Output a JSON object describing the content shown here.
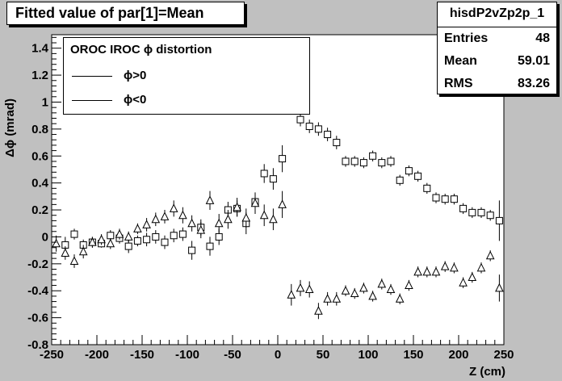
{
  "canvas": {
    "background": "#c0c0c0",
    "frame_color": "#ffffff"
  },
  "title": "Fitted value of par[1]=Mean",
  "stats": {
    "name": "hisdP2vZp2p_1",
    "rows": [
      {
        "label": "Entries",
        "value": "48"
      },
      {
        "label": "Mean",
        "value": "59.01"
      },
      {
        "label": "RMS",
        "value": "83.26"
      }
    ]
  },
  "legend": {
    "title": "OROC  IROC ϕ distortion",
    "entries": [
      {
        "label": "ϕ>0",
        "marker": "open-square"
      },
      {
        "label": "ϕ<0",
        "marker": "open-triangle"
      }
    ]
  },
  "chart_data": {
    "type": "scatter",
    "xlabel": "Z (cm)",
    "ylabel": "Δϕ (mrad)",
    "xlim": [
      -250,
      250
    ],
    "ylim": [
      -0.8,
      1.5
    ],
    "xticks": [
      -250,
      -200,
      -150,
      -100,
      -50,
      0,
      50,
      100,
      150,
      200,
      250
    ],
    "xtick_labels": [
      "-250",
      "-200",
      "-150",
      "-100",
      "-50",
      "0",
      "50",
      "100",
      "150",
      "200",
      "250"
    ],
    "yticks": [
      -0.8,
      -0.6,
      -0.4,
      -0.2,
      0,
      0.2,
      0.4,
      0.6,
      0.8,
      1,
      1.2,
      1.4
    ],
    "ytick_labels": [
      "-0.8",
      "-0.6",
      "-0.4",
      "-0.2",
      "0",
      "0.2",
      "0.4",
      "0.6",
      "0.8",
      "1",
      "1.2",
      "1.4"
    ],
    "grid": false,
    "legend_position": "top-left",
    "series": [
      {
        "name": "ϕ>0",
        "marker": "open-square",
        "points": [
          {
            "x": -235,
            "y": -0.06,
            "err": 0.06
          },
          {
            "x": -225,
            "y": 0.02,
            "err": 0.04
          },
          {
            "x": -215,
            "y": -0.06,
            "err": 0.04
          },
          {
            "x": -205,
            "y": -0.04,
            "err": 0.04
          },
          {
            "x": -195,
            "y": -0.05,
            "err": 0.03
          },
          {
            "x": -185,
            "y": 0.01,
            "err": 0.04
          },
          {
            "x": -175,
            "y": -0.01,
            "err": 0.04
          },
          {
            "x": -165,
            "y": -0.07,
            "err": 0.05
          },
          {
            "x": -155,
            "y": -0.03,
            "err": 0.04
          },
          {
            "x": -145,
            "y": -0.02,
            "err": 0.05
          },
          {
            "x": -135,
            "y": 0.0,
            "err": 0.05
          },
          {
            "x": -125,
            "y": -0.04,
            "err": 0.05
          },
          {
            "x": -115,
            "y": 0.01,
            "err": 0.05
          },
          {
            "x": -105,
            "y": 0.02,
            "err": 0.05
          },
          {
            "x": -95,
            "y": -0.1,
            "err": 0.07
          },
          {
            "x": -85,
            "y": 0.07,
            "err": 0.06
          },
          {
            "x": -75,
            "y": -0.07,
            "err": 0.07
          },
          {
            "x": -65,
            "y": 0.0,
            "err": 0.06
          },
          {
            "x": -55,
            "y": 0.2,
            "err": 0.06
          },
          {
            "x": -45,
            "y": 0.21,
            "err": 0.06
          },
          {
            "x": -35,
            "y": 0.1,
            "err": 0.08
          },
          {
            "x": -25,
            "y": 0.26,
            "err": 0.06
          },
          {
            "x": -15,
            "y": 0.47,
            "err": 0.07
          },
          {
            "x": -5,
            "y": 0.43,
            "err": 0.08
          },
          {
            "x": 5,
            "y": 0.58,
            "err": 0.1
          },
          {
            "x": 25,
            "y": 0.87,
            "err": 0.05
          },
          {
            "x": 35,
            "y": 0.82,
            "err": 0.05
          },
          {
            "x": 45,
            "y": 0.8,
            "err": 0.05
          },
          {
            "x": 55,
            "y": 0.76,
            "err": 0.05
          },
          {
            "x": 65,
            "y": 0.7,
            "err": 0.05
          },
          {
            "x": 75,
            "y": 0.56,
            "err": 0.04
          },
          {
            "x": 85,
            "y": 0.56,
            "err": 0.04
          },
          {
            "x": 95,
            "y": 0.55,
            "err": 0.04
          },
          {
            "x": 105,
            "y": 0.6,
            "err": 0.04
          },
          {
            "x": 115,
            "y": 0.55,
            "err": 0.04
          },
          {
            "x": 125,
            "y": 0.56,
            "err": 0.04
          },
          {
            "x": 135,
            "y": 0.42,
            "err": 0.04
          },
          {
            "x": 145,
            "y": 0.49,
            "err": 0.04
          },
          {
            "x": 155,
            "y": 0.45,
            "err": 0.04
          },
          {
            "x": 165,
            "y": 0.36,
            "err": 0.04
          },
          {
            "x": 175,
            "y": 0.29,
            "err": 0.04
          },
          {
            "x": 185,
            "y": 0.28,
            "err": 0.04
          },
          {
            "x": 195,
            "y": 0.28,
            "err": 0.04
          },
          {
            "x": 205,
            "y": 0.21,
            "err": 0.04
          },
          {
            "x": 215,
            "y": 0.18,
            "err": 0.04
          },
          {
            "x": 225,
            "y": 0.18,
            "err": 0.04
          },
          {
            "x": 235,
            "y": 0.16,
            "err": 0.04
          },
          {
            "x": 245,
            "y": 0.12,
            "err": 0.15
          }
        ]
      },
      {
        "name": "ϕ<0",
        "marker": "open-triangle",
        "points": [
          {
            "x": -245,
            "y": -0.05,
            "err": 0.06
          },
          {
            "x": -235,
            "y": -0.12,
            "err": 0.05
          },
          {
            "x": -225,
            "y": -0.18,
            "err": 0.05
          },
          {
            "x": -215,
            "y": -0.11,
            "err": 0.05
          },
          {
            "x": -205,
            "y": -0.04,
            "err": 0.04
          },
          {
            "x": -195,
            "y": -0.02,
            "err": 0.04
          },
          {
            "x": -185,
            "y": -0.05,
            "err": 0.04
          },
          {
            "x": -175,
            "y": 0.02,
            "err": 0.04
          },
          {
            "x": -165,
            "y": 0.0,
            "err": 0.04
          },
          {
            "x": -155,
            "y": 0.06,
            "err": 0.04
          },
          {
            "x": -145,
            "y": 0.09,
            "err": 0.05
          },
          {
            "x": -135,
            "y": 0.13,
            "err": 0.05
          },
          {
            "x": -125,
            "y": 0.15,
            "err": 0.05
          },
          {
            "x": -115,
            "y": 0.21,
            "err": 0.06
          },
          {
            "x": -105,
            "y": 0.16,
            "err": 0.06
          },
          {
            "x": -95,
            "y": 0.1,
            "err": 0.06
          },
          {
            "x": -85,
            "y": 0.05,
            "err": 0.06
          },
          {
            "x": -75,
            "y": 0.27,
            "err": 0.07
          },
          {
            "x": -65,
            "y": 0.1,
            "err": 0.07
          },
          {
            "x": -55,
            "y": 0.13,
            "err": 0.07
          },
          {
            "x": -45,
            "y": 0.22,
            "err": 0.07
          },
          {
            "x": -35,
            "y": 0.14,
            "err": 0.07
          },
          {
            "x": -25,
            "y": 0.25,
            "err": 0.08
          },
          {
            "x": -15,
            "y": 0.16,
            "err": 0.08
          },
          {
            "x": -5,
            "y": 0.13,
            "err": 0.08
          },
          {
            "x": 5,
            "y": 0.24,
            "err": 0.1
          },
          {
            "x": 15,
            "y": -0.43,
            "err": 0.08
          },
          {
            "x": 25,
            "y": -0.38,
            "err": 0.06
          },
          {
            "x": 35,
            "y": -0.39,
            "err": 0.06
          },
          {
            "x": 45,
            "y": -0.55,
            "err": 0.06
          },
          {
            "x": 55,
            "y": -0.46,
            "err": 0.05
          },
          {
            "x": 65,
            "y": -0.46,
            "err": 0.05
          },
          {
            "x": 75,
            "y": -0.4,
            "err": 0.04
          },
          {
            "x": 85,
            "y": -0.42,
            "err": 0.04
          },
          {
            "x": 95,
            "y": -0.38,
            "err": 0.04
          },
          {
            "x": 105,
            "y": -0.44,
            "err": 0.04
          },
          {
            "x": 115,
            "y": -0.35,
            "err": 0.04
          },
          {
            "x": 125,
            "y": -0.39,
            "err": 0.04
          },
          {
            "x": 135,
            "y": -0.46,
            "err": 0.04
          },
          {
            "x": 145,
            "y": -0.36,
            "err": 0.04
          },
          {
            "x": 155,
            "y": -0.26,
            "err": 0.04
          },
          {
            "x": 165,
            "y": -0.26,
            "err": 0.04
          },
          {
            "x": 175,
            "y": -0.26,
            "err": 0.04
          },
          {
            "x": 185,
            "y": -0.22,
            "err": 0.04
          },
          {
            "x": 195,
            "y": -0.23,
            "err": 0.04
          },
          {
            "x": 205,
            "y": -0.34,
            "err": 0.04
          },
          {
            "x": 215,
            "y": -0.3,
            "err": 0.04
          },
          {
            "x": 225,
            "y": -0.23,
            "err": 0.04
          },
          {
            "x": 235,
            "y": -0.14,
            "err": 0.04
          },
          {
            "x": 245,
            "y": -0.38,
            "err": 0.1
          }
        ]
      }
    ]
  }
}
